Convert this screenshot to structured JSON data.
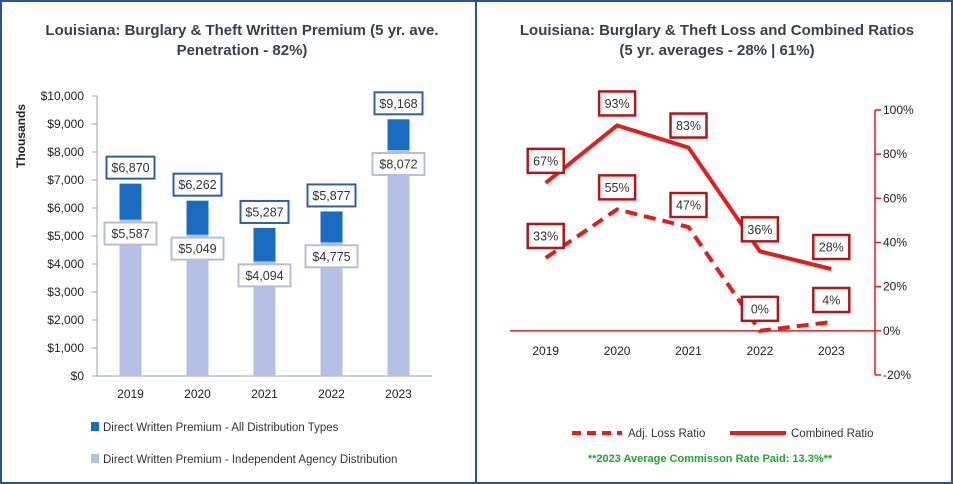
{
  "chart_data": [
    {
      "type": "bar",
      "title": "Louisiana: Burglary & Theft Written Premium (5 yr. ave. Penetration - 82%)",
      "categories": [
        "2019",
        "2020",
        "2021",
        "2022",
        "2023"
      ],
      "ylabel": "Thousands",
      "ylim": [
        0,
        10000
      ],
      "yticks": [
        "$0",
        "$1,000",
        "$2,000",
        "$3,000",
        "$4,000",
        "$5,000",
        "$6,000",
        "$7,000",
        "$8,000",
        "$9,000",
        "$10,000"
      ],
      "series": [
        {
          "name": "Direct Written Premium - All Distribution Types",
          "values": [
            6870,
            6262,
            5287,
            5877,
            9168
          ],
          "labels": [
            "$6,870",
            "$6,262",
            "$5,287",
            "$5,877",
            "$9,168"
          ],
          "color": "#1a6cc2"
        },
        {
          "name": "Direct Written Premium - Independent Agency Distribution",
          "values": [
            5587,
            5049,
            4094,
            4775,
            8072
          ],
          "labels": [
            "$5,587",
            "$5,049",
            "$4,094",
            "$4,775",
            "$8,072"
          ],
          "color": "#b4bfe6"
        }
      ],
      "legend": "bottom"
    },
    {
      "type": "line",
      "title": "Louisiana: Burglary & Theft Loss and Combined Ratios (5 yr. averages - 28% | 61%)",
      "categories": [
        "2019",
        "2020",
        "2021",
        "2022",
        "2023"
      ],
      "ylim": [
        -20,
        100
      ],
      "yticks": [
        "-20%",
        "0%",
        "20%",
        "40%",
        "60%",
        "80%",
        "100%"
      ],
      "series": [
        {
          "name": "Adj. Loss Ratio",
          "values": [
            33,
            55,
            47,
            0,
            4
          ],
          "labels": [
            "33%",
            "55%",
            "47%",
            "0%",
            "4%"
          ],
          "style": "dashed",
          "color": "#e51c1c"
        },
        {
          "name": "Combined Ratio",
          "values": [
            67,
            93,
            83,
            36,
            28
          ],
          "labels": [
            "67%",
            "93%",
            "83%",
            "36%",
            "28%"
          ],
          "style": "solid",
          "color": "#e51c1c"
        }
      ],
      "legend": "bottom",
      "note": "**2023 Average Commisson Rate Paid: 13.3%**"
    }
  ]
}
